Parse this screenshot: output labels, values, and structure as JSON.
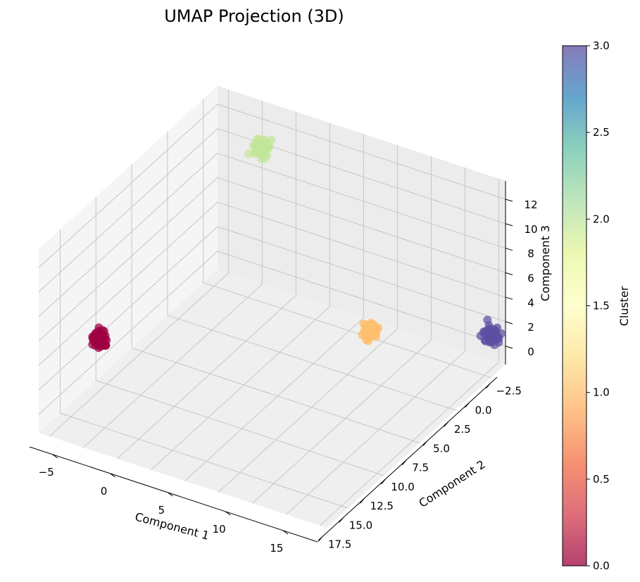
{
  "chart_data": {
    "type": "scatter",
    "projection": "3d",
    "title": "UMAP Projection (3D)",
    "xlabel": "Component 1",
    "ylabel": "Component 2",
    "zlabel": "Component 3",
    "xlim": [
      -7,
      18
    ],
    "ylim": [
      -3.3,
      18
    ],
    "zlim": [
      -1.5,
      13.5
    ],
    "x_ticks": [
      "−5",
      "0",
      "5",
      "10",
      "15"
    ],
    "y_ticks": [
      "−2.5",
      "0.0",
      "2.5",
      "5.0",
      "7.5",
      "10.0",
      "12.5",
      "15.0",
      "17.5"
    ],
    "z_ticks": [
      "0",
      "2",
      "4",
      "6",
      "8",
      "10",
      "12"
    ],
    "grid": true,
    "colormap": "Spectral",
    "colorbar": {
      "label": "Cluster",
      "ticks": [
        "0.0",
        "0.5",
        "1.0",
        "1.5",
        "2.0",
        "2.5",
        "3.0"
      ],
      "range": [
        0,
        3
      ]
    },
    "clusters": [
      {
        "cluster": 0,
        "color": "#9e0142",
        "center": [
          10,
          -3,
          2
        ]
      },
      {
        "cluster": 1,
        "color": "#fdbf6f",
        "center": [
          10,
          17,
          10
        ]
      },
      {
        "cluster": 2,
        "color": "#c2e699",
        "center": [
          -5,
          1,
          11
        ]
      },
      {
        "cluster": 3,
        "color": "#5e4fa2",
        "center": [
          -5,
          18,
          2
        ]
      }
    ]
  }
}
